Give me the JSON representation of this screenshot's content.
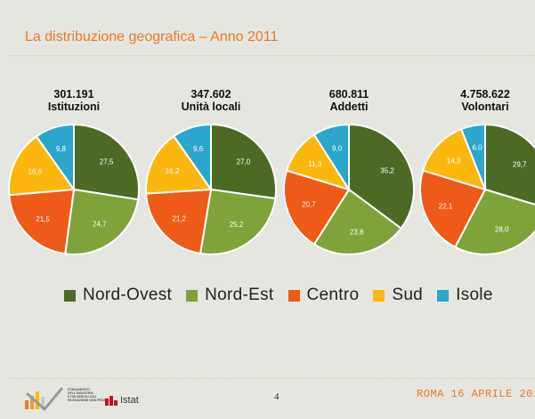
{
  "slide_title": "La distribuzione geografica – Anno 2011",
  "colors": {
    "Nord-Ovest": "#4d6a24",
    "Nord-Est": "#7fa23a",
    "Centro": "#ee5a17",
    "Sud": "#fcb70f",
    "Isole": "#2ba6cc",
    "title": "#e8792b"
  },
  "legend": [
    "Nord-Ovest",
    "Nord-Est",
    "Centro",
    "Sud",
    "Isole"
  ],
  "chart_data": [
    {
      "type": "pie",
      "title_value": "301.191",
      "title": "Istituzioni",
      "categories": [
        "Nord-Ovest",
        "Nord-Est",
        "Centro",
        "Sud",
        "Isole"
      ],
      "values": [
        27.5,
        24.7,
        21.5,
        16.6,
        9.8
      ],
      "labels": [
        "27,5",
        "24,7",
        "21,5",
        "16,6",
        "9,8"
      ]
    },
    {
      "type": "pie",
      "title_value": "347.602",
      "title": "Unità locali",
      "categories": [
        "Nord-Ovest",
        "Nord-Est",
        "Centro",
        "Sud",
        "Isole"
      ],
      "values": [
        27.0,
        25.2,
        21.2,
        16.2,
        9.6
      ],
      "labels": [
        "27,0",
        "25,2",
        "21,2",
        "16,2",
        "9,6"
      ]
    },
    {
      "type": "pie",
      "title_value": "680.811",
      "title": "Addetti",
      "categories": [
        "Nord-Ovest",
        "Nord-Est",
        "Centro",
        "Sud",
        "Isole"
      ],
      "values": [
        35.2,
        23.8,
        20.7,
        11.3,
        9.0
      ],
      "labels": [
        "35,2",
        "23,8",
        "20,7",
        "11,3",
        "9,0"
      ]
    },
    {
      "type": "pie",
      "title_value": "4.758.622",
      "title": "Volontari",
      "categories": [
        "Nord-Ovest",
        "Nord-Est",
        "Centro",
        "Sud",
        "Isole"
      ],
      "values": [
        29.7,
        28.0,
        22.1,
        14.3,
        6.0
      ],
      "labels": [
        "29,7",
        "28,0",
        "22,1",
        "14,3",
        "6,0"
      ]
    }
  ],
  "footer": {
    "page_number": "4",
    "date": "ROMA 16 APRILE 201",
    "istat_label": "Istat",
    "logo_lines": [
      "FONDAMENTO",
      "DELL'INDUSTRIA",
      "E DEI SERVIZI 2011",
      "RILEVAZIONE NON PROFIT"
    ]
  }
}
